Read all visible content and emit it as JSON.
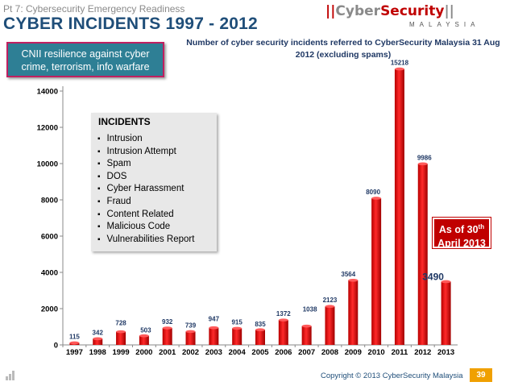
{
  "header": {
    "subtitle": "Pt 7: Cybersecurity Emergency Readiness",
    "title": "CYBER INCIDENTS 1997 - 2012"
  },
  "logo": {
    "brand_left": "Cyber",
    "brand_right": "Security",
    "country": "MALAYSIA"
  },
  "callout": {
    "line1": "CNII resilience against cyber",
    "line2": "crime,  terrorism, info warfare"
  },
  "incidents_box": {
    "heading": "INCIDENTS",
    "items": [
      "Intrusion",
      "Intrusion Attempt",
      "Spam",
      "DOS",
      "Cyber Harassment",
      "Fraud",
      "Content Related",
      "Malicious Code",
      "Vulnerabilities  Report"
    ]
  },
  "as_of": {
    "line1_prefix": "As of 30",
    "line1_sup": "th",
    "line2": "April 2013"
  },
  "footer": {
    "copyright": "Copyright © 2013 CyberSecurity Malaysia",
    "page": "39"
  },
  "colors": {
    "bar": "#e00000",
    "title_blue": "#1f4e79",
    "callout_bg": "#2e7f95",
    "page_badge": "#f0a000"
  },
  "chart_data": {
    "type": "bar",
    "title_line1": "Number of cyber security incidents referred to CyberSecurity Malaysia 31 Aug",
    "title_line2": "2012 (excluding spams)",
    "categories": [
      "1997",
      "1998",
      "1999",
      "2000",
      "2001",
      "2002",
      "2003",
      "2004",
      "2005",
      "2006",
      "2007",
      "2008",
      "2009",
      "2010",
      "2011",
      "2012",
      "2013"
    ],
    "values": [
      115,
      342,
      728,
      503,
      932,
      739,
      947,
      915,
      835,
      1372,
      1038,
      2123,
      3564,
      8090,
      15218,
      9986,
      3490
    ],
    "labels": [
      "115",
      "342",
      "728",
      "503",
      "932",
      "739",
      "947",
      "915",
      "835",
      "1372",
      "1038",
      "2123",
      "3564",
      "8090",
      "15218",
      "9986",
      "3490"
    ],
    "yticks": [
      0,
      2000,
      4000,
      6000,
      8000,
      10000,
      12000,
      14000
    ],
    "ylim": [
      0,
      15500
    ],
    "grid": false,
    "legend": "none"
  }
}
